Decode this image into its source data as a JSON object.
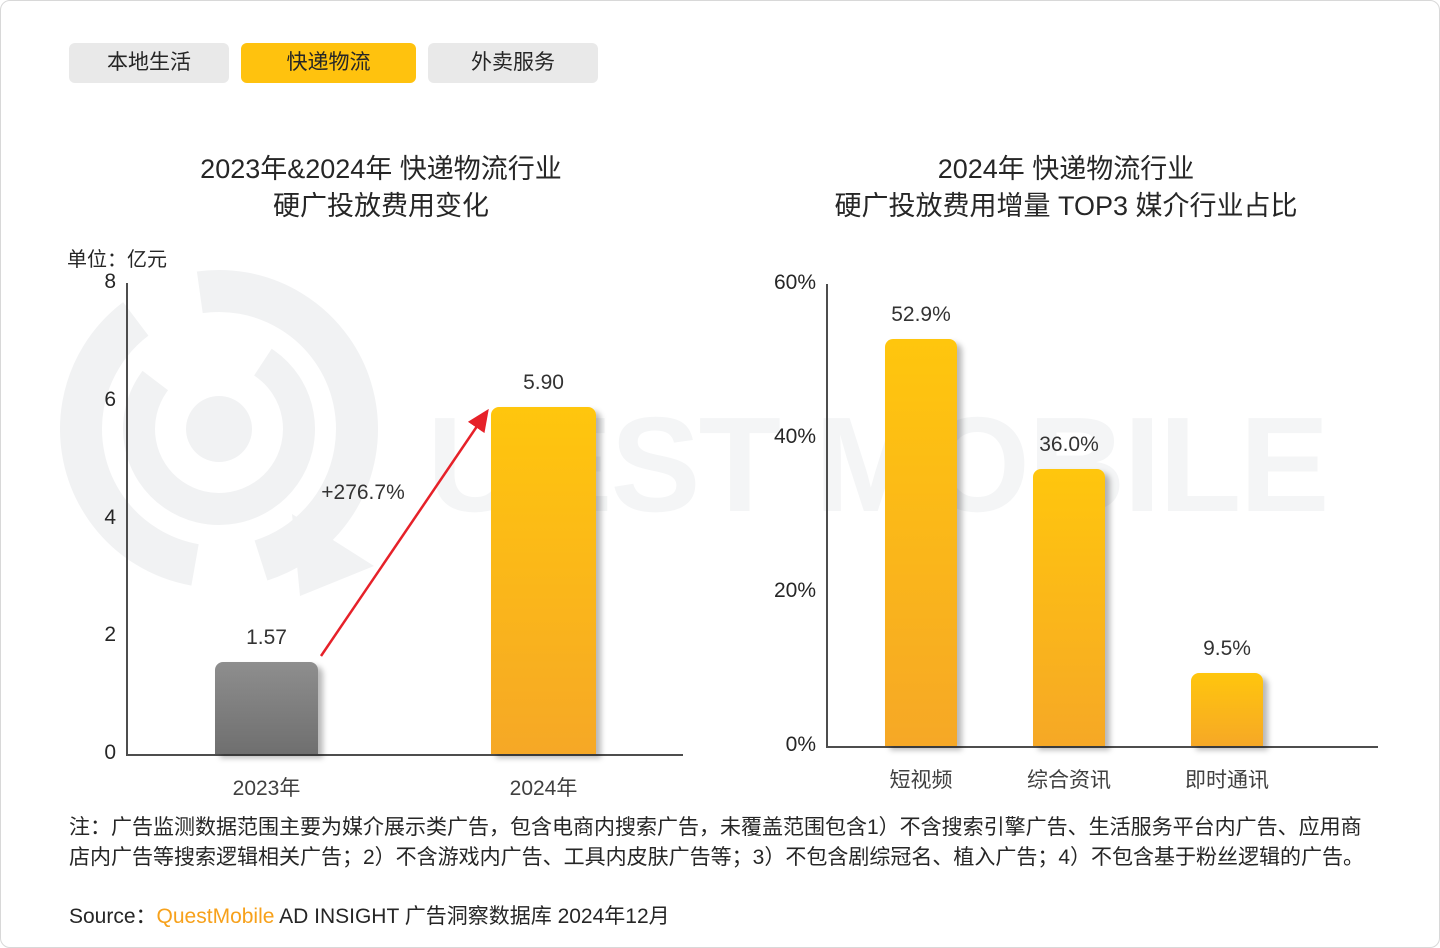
{
  "tabs": [
    {
      "label": "本地生活",
      "active": false
    },
    {
      "label": "快递物流",
      "active": true
    },
    {
      "label": "外卖服务",
      "active": false
    }
  ],
  "watermark": {
    "text": "UEST MOBILE",
    "logo": "questmobile-logo",
    "color": "#f4f5f6"
  },
  "colors": {
    "tab_active": "#ffc20e",
    "tab_inactive": "#e9e9e9",
    "bar_yellow_top": "#ffc60d",
    "bar_yellow_bottom": "#f6a826",
    "bar_gray_top": "#8e8e8e",
    "bar_gray_bottom": "#6f6f6f",
    "arrow_red": "#e62129",
    "brand_orange": "#f7a11b"
  },
  "chart_data": [
    {
      "type": "bar",
      "title_line1": "2023年&2024年 快递物流行业",
      "title_line2": "硬广投放费用变化",
      "unit_label": "单位：亿元",
      "ylabel": "亿元",
      "categories": [
        "2023年",
        "2024年"
      ],
      "values": [
        1.57,
        5.9
      ],
      "value_labels": [
        "1.57",
        "5.90"
      ],
      "bar_styles": [
        "gray",
        "yellow"
      ],
      "ylim": [
        0,
        8
      ],
      "yticks": [
        "8",
        "6",
        "4",
        "2",
        "0"
      ],
      "grid": false,
      "legend": null,
      "annotation": "+276.7%"
    },
    {
      "type": "bar",
      "title_line1": "2024年 快递物流行业",
      "title_line2": "硬广投放费用增量 TOP3 媒介行业占比",
      "categories": [
        "短视频",
        "综合资讯",
        "即时通讯"
      ],
      "values": [
        52.9,
        36.0,
        9.5
      ],
      "value_labels": [
        "52.9%",
        "36.0%",
        "9.5%"
      ],
      "bar_styles": [
        "yellow",
        "yellow",
        "yellow"
      ],
      "ylim": [
        0,
        60
      ],
      "yticks": [
        "60%",
        "40%",
        "20%",
        "0%"
      ],
      "grid": false,
      "legend": null
    }
  ],
  "footer": {
    "note": "注：广告监测数据范围主要为媒介展示类广告，包含电商内搜索广告，未覆盖范围包含1）不含搜索引擎广告、生活服务平台内广告、应用商店内广告等搜索逻辑相关广告；2）不含游戏内广告、工具内皮肤广告等；3）不包含剧综冠名、植入广告；4）不包含基于粉丝逻辑的广告。",
    "source_prefix": "Source：",
    "source_brand": "QuestMobile",
    "source_suffix": " AD INSIGHT 广告洞察数据库 2024年12月"
  }
}
